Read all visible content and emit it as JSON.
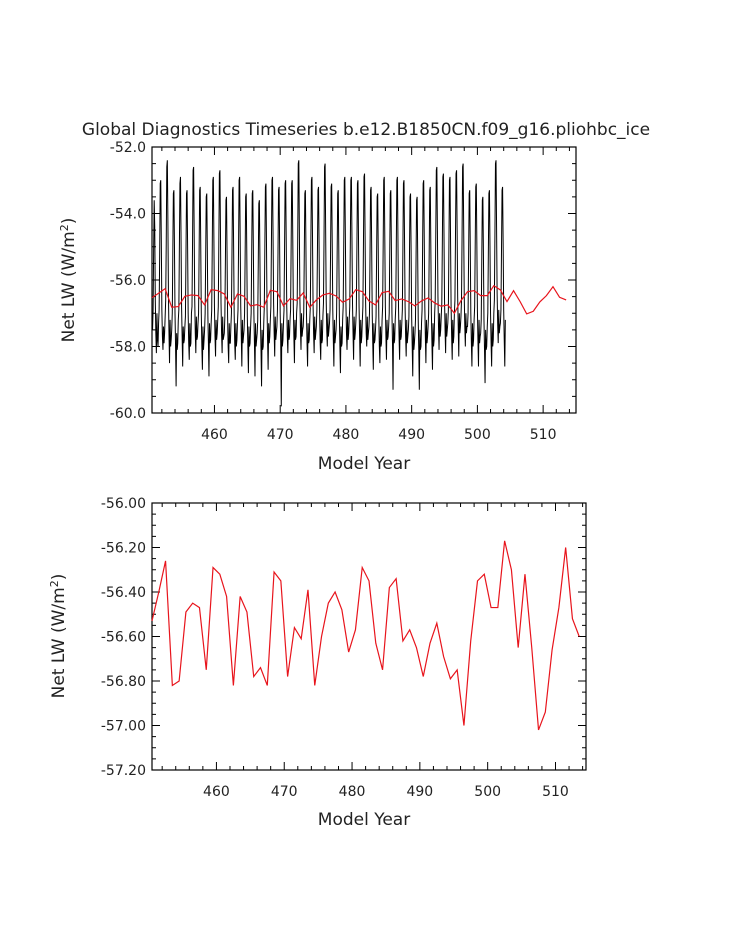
{
  "title": "Global Diagnostics Timeseries b.e12.B1850CN.f09_g16.pliohbc_ice",
  "colors": {
    "monthly": "#000000",
    "annual": "#e8141c",
    "axes": "#000000"
  },
  "chart_data": [
    {
      "type": "line",
      "title": "Global Diagnostics Timeseries b.e12.B1850CN.f09_g16.pliohbc_ice",
      "xlabel": "Model Year",
      "ylabel": "Net LW (W/m2)",
      "ylabel_parts": [
        "Net LW (W/m",
        "2",
        ")"
      ],
      "xlim": [
        450.5,
        515
      ],
      "ylim": [
        -60.0,
        -52.0
      ],
      "xticks": [
        460,
        470,
        480,
        490,
        500,
        510
      ],
      "yticks": [
        "-60.0",
        "-58.0",
        "-56.0",
        "-54.0",
        "-52.0"
      ],
      "grid": false,
      "series": [
        {
          "color": "#000000",
          "seasonal_cycle": {
            "per_year_samples": 12,
            "start_year": 450.5,
            "approx_annual_max": -53.0,
            "approx_annual_min": -58.0
          },
          "values": [
            -57.2,
            -57.5,
            -56.9,
            -55.1,
            -53.6,
            -54.4,
            -56.6,
            -57.6,
            -58.2,
            -57.0,
            -57.8,
            -58.0,
            -57.3,
            -56.9,
            -55.3,
            -53.1,
            -53.0,
            -54.8,
            -56.9,
            -57.7,
            -58.1,
            -57.4,
            -57.9,
            -57.6,
            -57.1,
            -56.6,
            -54.9,
            -52.6,
            -52.4,
            -54.2,
            -56.4,
            -57.6,
            -58.5,
            -57.2,
            -58.0,
            -57.8,
            -57.5,
            -57.0,
            -55.2,
            -53.4,
            -53.3,
            -55.0,
            -57.0,
            -58.0,
            -59.2,
            -57.6,
            -58.1,
            -57.9,
            -57.2,
            -56.9,
            -55.0,
            -53.1,
            -52.9,
            -54.7,
            -56.8,
            -57.7,
            -58.6,
            -57.4,
            -57.9,
            -57.8,
            -57.4,
            -57.1,
            -55.3,
            -53.4,
            -53.3,
            -55.0,
            -57.0,
            -57.9,
            -58.4,
            -57.3,
            -58.0,
            -57.9,
            -57.0,
            -56.8,
            -54.9,
            -52.7,
            -52.6,
            -54.6,
            -56.6,
            -57.6,
            -58.2,
            -57.1,
            -57.8,
            -57.7,
            -57.3,
            -57.0,
            -55.2,
            -53.3,
            -53.2,
            -55.0,
            -57.0,
            -58.0,
            -58.7,
            -57.4,
            -58.1,
            -57.8,
            -57.5,
            -57.0,
            -55.3,
            -53.5,
            -53.4,
            -55.1,
            -57.1,
            -57.9,
            -58.9,
            -57.3,
            -57.9,
            -57.8,
            -57.3,
            -56.9,
            -55.0,
            -53.0,
            -52.9,
            -54.8,
            -56.8,
            -57.7,
            -58.3,
            -57.2,
            -57.8,
            -57.6,
            -57.2,
            -56.8,
            -54.9,
            -52.8,
            -52.7,
            -54.6,
            -56.7,
            -57.6,
            -58.2,
            -57.1,
            -57.8,
            -57.7,
            -57.6,
            -57.1,
            -55.4,
            -53.6,
            -53.5,
            -55.2,
            -57.1,
            -58.0,
            -58.5,
            -57.3,
            -57.9,
            -57.9,
            -57.4,
            -57.0,
            -55.2,
            -53.3,
            -53.2,
            -55.0,
            -57.0,
            -57.9,
            -58.4,
            -57.3,
            -58.0,
            -57.8,
            -57.3,
            -56.9,
            -55.0,
            -53.0,
            -52.9,
            -54.8,
            -56.8,
            -57.7,
            -58.6,
            -57.2,
            -57.9,
            -57.7,
            -57.5,
            -57.0,
            -55.3,
            -53.5,
            -53.4,
            -55.1,
            -57.1,
            -58.0,
            -58.8,
            -57.4,
            -58.0,
            -57.9,
            -57.4,
            -57.0,
            -55.2,
            -53.4,
            -53.3,
            -55.0,
            -57.0,
            -57.9,
            -58.9,
            -57.3,
            -58.0,
            -57.8,
            -57.6,
            -57.2,
            -55.5,
            -53.7,
            -53.6,
            -55.3,
            -57.2,
            -58.1,
            -59.2,
            -57.5,
            -58.1,
            -58.0,
            -57.3,
            -56.8,
            -55.0,
            -53.2,
            -53.1,
            -54.9,
            -56.9,
            -57.8,
            -58.7,
            -57.3,
            -57.9,
            -57.7,
            -57.2,
            -56.8,
            -54.9,
            -53.0,
            -52.9,
            -54.7,
            -56.7,
            -57.6,
            -58.3,
            -57.1,
            -57.8,
            -57.6,
            -57.4,
            -56.9,
            -55.2,
            -53.3,
            -53.2,
            -55.0,
            -57.0,
            -57.9,
            -59.8,
            -57.3,
            -58.0,
            -57.8,
            -57.3,
            -56.9,
            -55.0,
            -53.1,
            -53.0,
            -54.8,
            -56.8,
            -57.7,
            -58.2,
            -57.2,
            -57.8,
            -57.7,
            -57.2,
            -56.9,
            -55.0,
            -53.1,
            -53.0,
            -54.8,
            -56.8,
            -57.7,
            -58.5,
            -57.2,
            -57.8,
            -57.7,
            -57.0,
            -56.7,
            -54.8,
            -52.5,
            -52.4,
            -54.5,
            -56.6,
            -57.5,
            -58.1,
            -57.0,
            -57.7,
            -57.5,
            -57.4,
            -57.0,
            -55.2,
            -53.4,
            -53.3,
            -55.0,
            -57.0,
            -57.9,
            -58.6,
            -57.3,
            -57.9,
            -57.8,
            -57.2,
            -56.8,
            -54.9,
            -53.0,
            -52.9,
            -54.7,
            -56.7,
            -57.6,
            -58.2,
            -57.1,
            -57.8,
            -57.6,
            -57.4,
            -56.9,
            -55.1,
            -53.3,
            -53.2,
            -55.0,
            -57.0,
            -57.9,
            -58.4,
            -57.2,
            -57.9,
            -57.8,
            -57.1,
            -56.7,
            -54.8,
            -52.6,
            -52.5,
            -54.5,
            -56.6,
            -57.5,
            -58.0,
            -57.0,
            -57.7,
            -57.5,
            -57.3,
            -56.9,
            -55.1,
            -53.2,
            -53.1,
            -54.9,
            -56.9,
            -57.8,
            -58.6,
            -57.2,
            -57.9,
            -57.7,
            -57.5,
            -57.0,
            -55.2,
            -53.4,
            -53.3,
            -55.1,
            -57.1,
            -58.0,
            -58.8,
            -57.4,
            -58.0,
            -57.9,
            -57.2,
            -56.8,
            -55.0,
            -53.0,
            -52.9,
            -54.7,
            -56.7,
            -57.6,
            -58.1,
            -57.1,
            -57.8,
            -57.6,
            -57.2,
            -56.8,
            -55.0,
            -53.0,
            -52.9,
            -54.7,
            -56.7,
            -57.6,
            -58.4,
            -57.1,
            -57.8,
            -57.6,
            -57.3,
            -56.9,
            -55.1,
            -53.1,
            -53.0,
            -54.8,
            -56.8,
            -57.7,
            -58.6,
            -57.2,
            -57.9,
            -57.7,
            -57.2,
            -56.8,
            -54.9,
            -52.9,
            -52.8,
            -54.7,
            -56.7,
            -57.6,
            -58.0,
            -57.1,
            -57.8,
            -57.6,
            -57.4,
            -57.0,
            -55.2,
            -53.3,
            -53.2,
            -55.0,
            -57.0,
            -57.9,
            -58.7,
            -57.3,
            -57.9,
            -57.8,
            -57.5,
            -57.1,
            -55.3,
            -53.5,
            -53.4,
            -55.1,
            -57.1,
            -58.0,
            -58.5,
            -57.4,
            -58.0,
            -57.9,
            -57.2,
            -56.8,
            -55.0,
            -53.0,
            -52.9,
            -54.8,
            -56.8,
            -57.7,
            -58.4,
            -57.2,
            -57.8,
            -57.7,
            -57.4,
            -57.0,
            -55.2,
            -53.4,
            -53.3,
            -55.0,
            -57.0,
            -57.9,
            -59.3,
            -57.3,
            -57.9,
            -57.8,
            -57.2,
            -56.8,
            -54.9,
            -53.0,
            -52.9,
            -54.8,
            -56.8,
            -57.7,
            -58.4,
            -57.2,
            -57.8,
            -57.7,
            -57.3,
            -56.9,
            -55.1,
            -53.1,
            -53.0,
            -54.8,
            -56.8,
            -57.7,
            -58.3,
            -57.2,
            -57.9,
            -57.7,
            -57.5,
            -57.1,
            -55.3,
            -53.5,
            -53.4,
            -55.1,
            -57.1,
            -58.0,
            -58.9,
            -57.4,
            -58.1,
            -57.9,
            -57.6,
            -57.2,
            -55.4,
            -53.6,
            -53.5,
            -55.2,
            -57.2,
            -58.1,
            -59.3,
            -57.5,
            -58.1,
            -58.0,
            -57.3,
            -56.9,
            -55.0,
            -53.1,
            -53.0,
            -54.8,
            -56.8,
            -57.7,
            -58.5,
            -57.2,
            -57.9,
            -57.7,
            -57.4,
            -57.0,
            -55.2,
            -53.3,
            -53.2,
            -55.0,
            -57.0,
            -57.9,
            -58.7,
            -57.3,
            -58.0,
            -57.8,
            -57.0,
            -56.6,
            -54.7,
            -52.7,
            -52.6,
            -54.5,
            -56.5,
            -57.4,
            -58.1,
            -57.0,
            -57.7,
            -57.5,
            -57.1,
            -56.7,
            -54.9,
            -52.9,
            -52.8,
            -54.6,
            -56.6,
            -57.5,
            -58.2,
            -57.0,
            -57.7,
            -57.5,
            -57.3,
            -56.9,
            -55.0,
            -53.0,
            -52.9,
            -54.8,
            -56.8,
            -57.7,
            -58.4,
            -57.2,
            -57.9,
            -57.7,
            -57.0,
            -56.6,
            -54.7,
            -52.8,
            -52.7,
            -54.5,
            -56.5,
            -57.4,
            -58.3,
            -57.0,
            -57.6,
            -57.4,
            -57.1,
            -56.6,
            -54.7,
            -52.6,
            -52.5,
            -54.5,
            -56.5,
            -57.4,
            -58.0,
            -57.0,
            -57.6,
            -57.4,
            -57.4,
            -57.0,
            -55.2,
            -53.4,
            -53.3,
            -55.0,
            -57.0,
            -57.9,
            -58.6,
            -57.3,
            -58.0,
            -57.8,
            -57.2,
            -56.8,
            -55.0,
            -53.2,
            -53.1,
            -54.9,
            -56.9,
            -57.8,
            -58.6,
            -57.2,
            -57.9,
            -57.7,
            -57.6,
            -57.2,
            -55.4,
            -53.6,
            -53.5,
            -55.2,
            -57.2,
            -58.1,
            -59.1,
            -57.5,
            -58.1,
            -58.0,
            -57.4,
            -57.0,
            -55.2,
            -53.4,
            -53.3,
            -55.0,
            -57.0,
            -57.9,
            -58.6,
            -57.3,
            -58.0,
            -57.8,
            -57.0,
            -56.6,
            -54.6,
            -52.5,
            -52.4,
            -54.4,
            -56.4,
            -57.3,
            -57.9,
            -56.9,
            -57.6,
            -57.4,
            -57.3,
            -56.9,
            -55.1,
            -53.3,
            -53.2,
            -54.9,
            -56.9,
            -57.8,
            -58.6,
            -57.2
          ]
        },
        {
          "color": "#e8141c",
          "x": [
            450.5,
            451.5,
            452.5,
            453.5,
            454.5,
            455.5,
            456.5,
            457.5,
            458.5,
            459.5,
            460.5,
            461.5,
            462.5,
            463.5,
            464.5,
            465.5,
            466.5,
            467.5,
            468.5,
            469.5,
            470.5,
            471.5,
            472.5,
            473.5,
            474.5,
            475.5,
            476.5,
            477.5,
            478.5,
            479.5,
            480.5,
            481.5,
            482.5,
            483.5,
            484.5,
            485.5,
            486.5,
            487.5,
            488.5,
            489.5,
            490.5,
            491.5,
            492.5,
            493.5,
            494.5,
            495.5,
            496.5,
            497.5,
            498.5,
            499.5,
            500.5,
            501.5,
            502.5,
            503.5,
            504.5,
            505.5,
            506.5,
            507.5,
            508.5,
            509.5,
            510.5,
            511.5,
            512.5,
            513.5
          ],
          "values": [
            -56.53,
            -56.4,
            -56.26,
            -56.82,
            -56.8,
            -56.49,
            -56.45,
            -56.47,
            -56.75,
            -56.29,
            -56.32,
            -56.42,
            -56.82,
            -56.42,
            -56.49,
            -56.78,
            -56.74,
            -56.82,
            -56.31,
            -56.35,
            -56.78,
            -56.56,
            -56.61,
            -56.39,
            -56.82,
            -56.6,
            -56.45,
            -56.4,
            -56.48,
            -56.67,
            -56.57,
            -56.29,
            -56.35,
            -56.63,
            -56.75,
            -56.38,
            -56.34,
            -56.62,
            -56.57,
            -56.65,
            -56.78,
            -56.63,
            -56.54,
            -56.69,
            -56.79,
            -56.75,
            -57.0,
            -56.62,
            -56.35,
            -56.32,
            -56.47,
            -56.47,
            -56.17,
            -56.3,
            -56.65,
            -56.32,
            -56.65,
            -57.02,
            -56.94,
            -56.66,
            -56.47,
            -56.2,
            -56.52,
            -56.6
          ]
        }
      ]
    },
    {
      "type": "line",
      "xlabel": "Model Year",
      "ylabel": "Net LW (W/m2)",
      "ylabel_parts": [
        "Net LW (W/m",
        "2",
        ")"
      ],
      "xlim": [
        450.5,
        514.5
      ],
      "ylim": [
        -57.2,
        -56.0
      ],
      "xticks": [
        460,
        470,
        480,
        490,
        500,
        510
      ],
      "yticks": [
        "-57.20",
        "-57.00",
        "-56.80",
        "-56.60",
        "-56.40",
        "-56.20",
        "-56.00"
      ],
      "grid": false,
      "series": [
        {
          "color": "#e8141c",
          "x": [
            450.5,
            451.5,
            452.5,
            453.5,
            454.5,
            455.5,
            456.5,
            457.5,
            458.5,
            459.5,
            460.5,
            461.5,
            462.5,
            463.5,
            464.5,
            465.5,
            466.5,
            467.5,
            468.5,
            469.5,
            470.5,
            471.5,
            472.5,
            473.5,
            474.5,
            475.5,
            476.5,
            477.5,
            478.5,
            479.5,
            480.5,
            481.5,
            482.5,
            483.5,
            484.5,
            485.5,
            486.5,
            487.5,
            488.5,
            489.5,
            490.5,
            491.5,
            492.5,
            493.5,
            494.5,
            495.5,
            496.5,
            497.5,
            498.5,
            499.5,
            500.5,
            501.5,
            502.5,
            503.5,
            504.5,
            505.5,
            506.5,
            507.5,
            508.5,
            509.5,
            510.5,
            511.5,
            512.5,
            513.5
          ],
          "values": [
            -56.53,
            -56.4,
            -56.26,
            -56.82,
            -56.8,
            -56.49,
            -56.45,
            -56.47,
            -56.75,
            -56.29,
            -56.32,
            -56.42,
            -56.82,
            -56.42,
            -56.49,
            -56.78,
            -56.74,
            -56.82,
            -56.31,
            -56.35,
            -56.78,
            -56.56,
            -56.61,
            -56.39,
            -56.82,
            -56.6,
            -56.45,
            -56.4,
            -56.48,
            -56.67,
            -56.57,
            -56.29,
            -56.35,
            -56.63,
            -56.75,
            -56.38,
            -56.34,
            -56.62,
            -56.57,
            -56.65,
            -56.78,
            -56.63,
            -56.54,
            -56.69,
            -56.79,
            -56.75,
            -57.0,
            -56.62,
            -56.35,
            -56.32,
            -56.47,
            -56.47,
            -56.17,
            -56.3,
            -56.65,
            -56.32,
            -56.65,
            -57.02,
            -56.94,
            -56.66,
            -56.47,
            -56.2,
            -56.52,
            -56.6
          ]
        }
      ]
    }
  ]
}
